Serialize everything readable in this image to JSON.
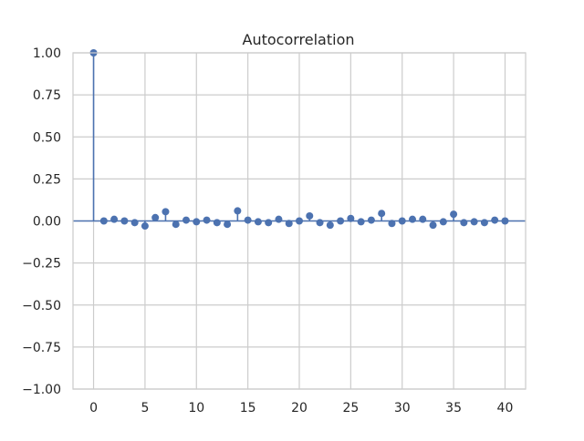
{
  "chart_data": {
    "type": "scatter",
    "title": "Autocorrelation",
    "xlabel": "",
    "ylabel": "",
    "xlim": [
      -2,
      42
    ],
    "ylim": [
      -1.0,
      1.0
    ],
    "x_ticks": [
      0,
      5,
      10,
      15,
      20,
      25,
      30,
      35,
      40
    ],
    "x_tick_labels": [
      "0",
      "5",
      "10",
      "15",
      "20",
      "25",
      "30",
      "35",
      "40"
    ],
    "y_ticks": [
      -1.0,
      -0.75,
      -0.5,
      -0.25,
      0.0,
      0.25,
      0.5,
      0.75,
      1.0
    ],
    "y_tick_labels": [
      "−1.00",
      "−0.75",
      "−0.50",
      "−0.25",
      "0.00",
      "0.25",
      "0.50",
      "0.75",
      "1.00"
    ],
    "grid": true,
    "marker_color": "#4c72b0",
    "series": [
      {
        "lags": [
          0,
          1,
          2,
          3,
          4,
          5,
          6,
          7,
          8,
          9,
          10,
          11,
          12,
          13,
          14,
          15,
          16,
          17,
          18,
          19,
          20,
          21,
          22,
          23,
          24,
          25,
          26,
          27,
          28,
          29,
          30,
          31,
          32,
          33,
          34,
          35,
          36,
          37,
          38,
          39,
          40
        ],
        "values": [
          1.0,
          0.0,
          0.01,
          0.0,
          -0.01,
          -0.03,
          0.02,
          0.055,
          -0.02,
          0.005,
          -0.005,
          0.005,
          -0.01,
          -0.02,
          0.06,
          0.005,
          -0.005,
          -0.01,
          0.01,
          -0.015,
          0.0,
          0.03,
          -0.01,
          -0.025,
          0.0,
          0.015,
          -0.005,
          0.005,
          0.045,
          -0.015,
          0.0,
          0.01,
          0.01,
          -0.025,
          -0.005,
          0.04,
          -0.01,
          -0.005,
          -0.01,
          0.005,
          0.0
        ]
      }
    ]
  }
}
